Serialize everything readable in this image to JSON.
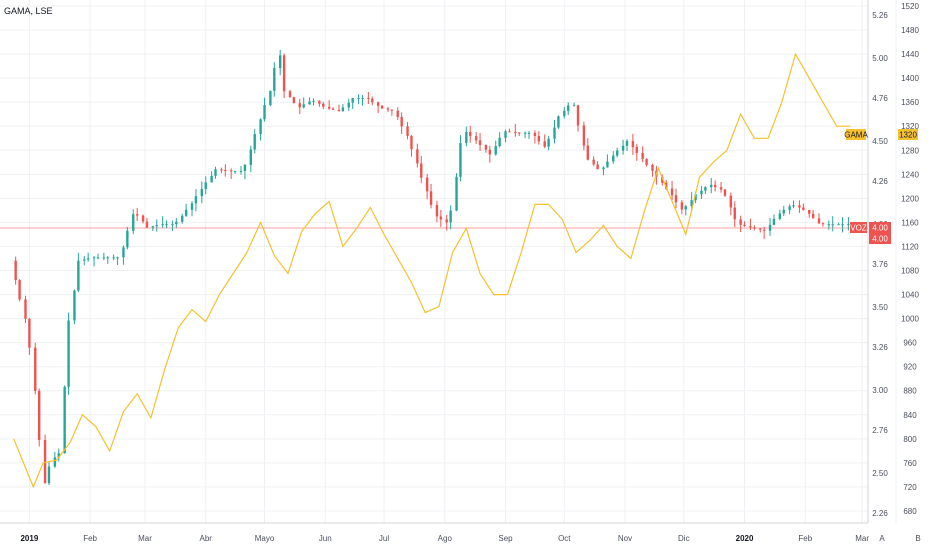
{
  "header": {
    "title": "GAMA, LSE"
  },
  "colors": {
    "up": "#26a69a",
    "down": "#ef5350",
    "overlay": "#f5c12e",
    "grid": "#eef0f3",
    "axis_line": "#d1d4dc"
  },
  "right_axis_ticks": [
    "1520",
    "1480",
    "1440",
    "1400",
    "1360",
    "1320",
    "1280",
    "1240",
    "1200",
    "1160",
    "1120",
    "1080",
    "1040",
    "1000",
    "960",
    "920",
    "880",
    "840",
    "800",
    "760",
    "720",
    "680"
  ],
  "left_axis_ticks": [
    "5.26",
    "5.00",
    "4.76",
    "4.50",
    "4.26",
    "4.00",
    "3.76",
    "3.50",
    "3.26",
    "3.00",
    "2.76",
    "2.50",
    "2.26"
  ],
  "months": [
    {
      "label": "2019",
      "bold": true
    },
    {
      "label": "Feb",
      "bold": false
    },
    {
      "label": "Mar",
      "bold": false
    },
    {
      "label": "Abr",
      "bold": false
    },
    {
      "label": "Mayo",
      "bold": false
    },
    {
      "label": "Jun",
      "bold": false
    },
    {
      "label": "Jul",
      "bold": false
    },
    {
      "label": "Ago",
      "bold": false
    },
    {
      "label": "Sep",
      "bold": false
    },
    {
      "label": "Oct",
      "bold": false
    },
    {
      "label": "Nov",
      "bold": false
    },
    {
      "label": "Dic",
      "bold": false
    },
    {
      "label": "2020",
      "bold": true
    },
    {
      "label": "Feb",
      "bold": false
    },
    {
      "label": "Mar",
      "bold": false
    }
  ],
  "corner": {
    "auto": "A",
    "log": "B"
  },
  "tags": {
    "gama": {
      "label": "GAMA",
      "value": "1320"
    },
    "voz": {
      "label": "VOZ",
      "value": "4.00",
      "value2": "4.00"
    }
  },
  "chart_data": {
    "type": "line",
    "title": "GAMA, LSE",
    "x_range": [
      "2019-01-01",
      "2020-03-01"
    ],
    "series": [
      {
        "name": "GAMA",
        "axis": "right",
        "ylim": [
          660,
          1530
        ],
        "points": [
          [
            "2018-12-24",
            800
          ],
          [
            "2019-01-03",
            720
          ],
          [
            "2019-01-08",
            760
          ],
          [
            "2019-01-15",
            765
          ],
          [
            "2019-01-22",
            795
          ],
          [
            "2019-01-28",
            840
          ],
          [
            "2019-02-04",
            820
          ],
          [
            "2019-02-11",
            780
          ],
          [
            "2019-02-18",
            845
          ],
          [
            "2019-02-25",
            875
          ],
          [
            "2019-03-04",
            835
          ],
          [
            "2019-03-11",
            915
          ],
          [
            "2019-03-18",
            985
          ],
          [
            "2019-03-25",
            1015
          ],
          [
            "2019-04-01",
            995
          ],
          [
            "2019-04-08",
            1040
          ],
          [
            "2019-04-15",
            1075
          ],
          [
            "2019-04-22",
            1110
          ],
          [
            "2019-04-29",
            1160
          ],
          [
            "2019-05-06",
            1105
          ],
          [
            "2019-05-13",
            1075
          ],
          [
            "2019-05-20",
            1145
          ],
          [
            "2019-05-27",
            1175
          ],
          [
            "2019-06-03",
            1195
          ],
          [
            "2019-06-10",
            1120
          ],
          [
            "2019-06-17",
            1150
          ],
          [
            "2019-06-24",
            1185
          ],
          [
            "2019-07-01",
            1140
          ],
          [
            "2019-07-08",
            1100
          ],
          [
            "2019-07-15",
            1060
          ],
          [
            "2019-07-22",
            1010
          ],
          [
            "2019-07-29",
            1020
          ],
          [
            "2019-08-05",
            1110
          ],
          [
            "2019-08-12",
            1150
          ],
          [
            "2019-08-19",
            1075
          ],
          [
            "2019-08-26",
            1040
          ],
          [
            "2019-09-02",
            1040
          ],
          [
            "2019-09-09",
            1110
          ],
          [
            "2019-09-16",
            1190
          ],
          [
            "2019-09-23",
            1190
          ],
          [
            "2019-09-30",
            1165
          ],
          [
            "2019-10-07",
            1110
          ],
          [
            "2019-10-14",
            1130
          ],
          [
            "2019-10-21",
            1155
          ],
          [
            "2019-10-28",
            1120
          ],
          [
            "2019-11-04",
            1100
          ],
          [
            "2019-11-11",
            1180
          ],
          [
            "2019-11-18",
            1250
          ],
          [
            "2019-11-25",
            1195
          ],
          [
            "2019-12-02",
            1140
          ],
          [
            "2019-12-09",
            1235
          ],
          [
            "2019-12-16",
            1260
          ],
          [
            "2019-12-23",
            1280
          ],
          [
            "2019-12-30",
            1340
          ],
          [
            "2020-01-06",
            1300
          ],
          [
            "2020-01-13",
            1300
          ],
          [
            "2020-01-20",
            1360
          ],
          [
            "2020-01-27",
            1440
          ],
          [
            "2020-02-03",
            1400
          ],
          [
            "2020-02-10",
            1360
          ],
          [
            "2020-02-17",
            1320
          ],
          [
            "2020-02-24",
            1320
          ]
        ]
      },
      {
        "name": "VOZ",
        "axis": "left",
        "ylim": [
          2.2,
          5.35
        ],
        "points": [
          [
            "2018-12-24",
            3.78
          ],
          [
            "2019-01-02",
            3.36
          ],
          [
            "2019-01-07",
            2.84
          ],
          [
            "2019-01-10",
            2.42
          ],
          [
            "2019-01-14",
            2.58
          ],
          [
            "2019-01-18",
            2.62
          ],
          [
            "2019-01-23",
            3.42
          ],
          [
            "2019-01-28",
            3.78
          ],
          [
            "2019-02-04",
            3.8
          ],
          [
            "2019-02-11",
            3.8
          ],
          [
            "2019-02-18",
            3.8
          ],
          [
            "2019-02-25",
            4.08
          ],
          [
            "2019-03-04",
            3.98
          ],
          [
            "2019-03-11",
            4.0
          ],
          [
            "2019-03-18",
            4.0
          ],
          [
            "2019-03-25",
            4.1
          ],
          [
            "2019-04-01",
            4.22
          ],
          [
            "2019-04-08",
            4.33
          ],
          [
            "2019-04-15",
            4.32
          ],
          [
            "2019-04-22",
            4.32
          ],
          [
            "2019-04-29",
            4.58
          ],
          [
            "2019-05-06",
            4.82
          ],
          [
            "2019-05-10",
            5.06
          ],
          [
            "2019-05-13",
            4.8
          ],
          [
            "2019-05-20",
            4.7
          ],
          [
            "2019-05-27",
            4.75
          ],
          [
            "2019-06-03",
            4.7
          ],
          [
            "2019-06-10",
            4.68
          ],
          [
            "2019-06-17",
            4.76
          ],
          [
            "2019-06-24",
            4.76
          ],
          [
            "2019-07-01",
            4.7
          ],
          [
            "2019-07-08",
            4.68
          ],
          [
            "2019-07-15",
            4.52
          ],
          [
            "2019-07-22",
            4.28
          ],
          [
            "2019-07-29",
            4.05
          ],
          [
            "2019-08-05",
            4.0
          ],
          [
            "2019-08-12",
            4.57
          ],
          [
            "2019-08-19",
            4.5
          ],
          [
            "2019-08-26",
            4.42
          ],
          [
            "2019-09-02",
            4.56
          ],
          [
            "2019-09-09",
            4.55
          ],
          [
            "2019-09-16",
            4.55
          ],
          [
            "2019-09-23",
            4.46
          ],
          [
            "2019-09-30",
            4.65
          ],
          [
            "2019-10-07",
            4.74
          ],
          [
            "2019-10-14",
            4.4
          ],
          [
            "2019-10-21",
            4.32
          ],
          [
            "2019-10-28",
            4.42
          ],
          [
            "2019-11-04",
            4.5
          ],
          [
            "2019-11-11",
            4.4
          ],
          [
            "2019-11-18",
            4.3
          ],
          [
            "2019-11-25",
            4.2
          ],
          [
            "2019-12-02",
            4.08
          ],
          [
            "2019-12-09",
            4.18
          ],
          [
            "2019-12-16",
            4.24
          ],
          [
            "2019-12-23",
            4.2
          ],
          [
            "2019-12-30",
            4.0
          ],
          [
            "2020-01-06",
            3.98
          ],
          [
            "2020-01-13",
            3.96
          ],
          [
            "2020-01-20",
            4.06
          ],
          [
            "2020-01-27",
            4.12
          ],
          [
            "2020-02-03",
            4.08
          ],
          [
            "2020-02-10",
            4.0
          ],
          [
            "2020-02-17",
            4.0
          ],
          [
            "2020-02-24",
            4.0
          ]
        ]
      }
    ]
  }
}
